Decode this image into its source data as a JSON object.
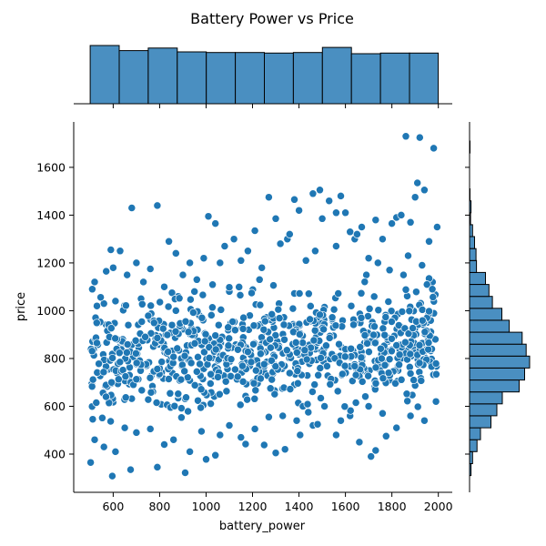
{
  "chart_data": {
    "type": "scatter",
    "title": "Battery Power vs Price",
    "xlabel": "battery_power",
    "ylabel": "price",
    "xlim": [
      430,
      2060
    ],
    "ylim": [
      240,
      1790
    ],
    "x_ticks": [
      "600",
      "800",
      "1000",
      "1200",
      "1400",
      "1600",
      "1800",
      "2000"
    ],
    "y_ticks": [
      "400",
      "600",
      "800",
      "1000",
      "1200",
      "1400",
      "1600"
    ],
    "x_tick_values": [
      600,
      800,
      1000,
      1200,
      1400,
      1600,
      1800,
      2000
    ],
    "y_tick_values": [
      400,
      600,
      800,
      1000,
      1200,
      1400,
      1600
    ],
    "grid": false,
    "point_color": "#1f77b4",
    "hist_color": "#4a8fc1",
    "marginal_x_hist": {
      "bin_edges": [
        501,
        626,
        751,
        876,
        1001,
        1126,
        1251,
        1376,
        1501,
        1626,
        1751,
        1876,
        2000
      ],
      "counts": [
        92,
        84,
        88,
        82,
        81,
        81,
        80,
        81,
        89,
        79,
        80,
        80
      ]
    },
    "marginal_y_hist": {
      "bin_edges": [
        310,
        360,
        410,
        460,
        510,
        560,
        610,
        660,
        710,
        760,
        810,
        860,
        910,
        960,
        1010,
        1060,
        1110,
        1160,
        1210,
        1260,
        1310,
        1360,
        1410,
        1460,
        1510,
        1560,
        1610,
        1660,
        1710,
        1760
      ],
      "counts": [
        3,
        6,
        15,
        22,
        43,
        55,
        66,
        100,
        111,
        121,
        114,
        106,
        80,
        65,
        46,
        39,
        32,
        14,
        13,
        10,
        6,
        2,
        3,
        1,
        0,
        0,
        0,
        1,
        0
      ]
    },
    "points": [
      [
        503,
        365
      ],
      [
        596,
        308
      ],
      [
        675,
        335
      ],
      [
        790,
        345
      ],
      [
        910,
        322
      ],
      [
        1000,
        378
      ],
      [
        1040,
        395
      ],
      [
        1170,
        442
      ],
      [
        1250,
        438
      ],
      [
        1300,
        405
      ],
      [
        1340,
        420
      ],
      [
        1405,
        480
      ],
      [
        1460,
        520
      ],
      [
        1710,
        390
      ],
      [
        1730,
        415
      ],
      [
        1775,
        475
      ],
      [
        1660,
        450
      ],
      [
        1560,
        480
      ],
      [
        1510,
        600
      ],
      [
        1580,
        540
      ],
      [
        520,
        460
      ],
      [
        560,
        430
      ],
      [
        610,
        410
      ],
      [
        650,
        510
      ],
      [
        700,
        490
      ],
      [
        760,
        505
      ],
      [
        820,
        440
      ],
      [
        860,
        460
      ],
      [
        930,
        410
      ],
      [
        980,
        495
      ],
      [
        1060,
        480
      ],
      [
        1100,
        520
      ],
      [
        1150,
        470
      ],
      [
        1210,
        505
      ],
      [
        1270,
        555
      ],
      [
        1330,
        560
      ],
      [
        1390,
        540
      ],
      [
        1440,
        575
      ],
      [
        1480,
        525
      ],
      [
        1620,
        560
      ],
      [
        1700,
        600
      ],
      [
        1760,
        570
      ],
      [
        1820,
        510
      ],
      [
        1880,
        560
      ],
      [
        1940,
        540
      ],
      [
        1990,
        620
      ],
      [
        510,
        1090
      ],
      [
        520,
        1120
      ],
      [
        540,
        950
      ],
      [
        570,
        1165
      ],
      [
        590,
        1255
      ],
      [
        600,
        1180
      ],
      [
        630,
        1250
      ],
      [
        660,
        1150
      ],
      [
        680,
        1430
      ],
      [
        700,
        1200
      ],
      [
        730,
        1120
      ],
      [
        760,
        1175
      ],
      [
        790,
        1440
      ],
      [
        820,
        1100
      ],
      [
        840,
        1290
      ],
      [
        870,
        1240
      ],
      [
        900,
        1150
      ],
      [
        930,
        1200
      ],
      [
        960,
        1130
      ],
      [
        990,
        1220
      ],
      [
        1010,
        1395
      ],
      [
        1040,
        1365
      ],
      [
        1060,
        1200
      ],
      [
        1080,
        1270
      ],
      [
        1120,
        1300
      ],
      [
        1150,
        1210
      ],
      [
        1180,
        1250
      ],
      [
        1210,
        1335
      ],
      [
        1240,
        1180
      ],
      [
        1270,
        1475
      ],
      [
        1300,
        1385
      ],
      [
        1320,
        1280
      ],
      [
        1350,
        1300
      ],
      [
        1380,
        1465
      ],
      [
        1400,
        1420
      ],
      [
        1430,
        1210
      ],
      [
        1460,
        1490
      ],
      [
        1490,
        1505
      ],
      [
        1500,
        1385
      ],
      [
        1530,
        1460
      ],
      [
        1560,
        1410
      ],
      [
        1580,
        1480
      ],
      [
        1600,
        1410
      ],
      [
        1620,
        1330
      ],
      [
        1640,
        1300
      ],
      [
        1670,
        1350
      ],
      [
        1700,
        1220
      ],
      [
        1730,
        1380
      ],
      [
        1760,
        1300
      ],
      [
        1800,
        1365
      ],
      [
        1820,
        1390
      ],
      [
        1840,
        1400
      ],
      [
        1860,
        1730
      ],
      [
        1880,
        1370
      ],
      [
        1900,
        1475
      ],
      [
        1920,
        1725
      ],
      [
        1940,
        1505
      ],
      [
        1960,
        1290
      ],
      [
        1980,
        1680
      ],
      [
        1995,
        1350
      ],
      [
        1910,
        1535
      ],
      [
        1870,
        1230
      ],
      [
        1650,
        1320
      ],
      [
        1560,
        1270
      ],
      [
        1470,
        1250
      ],
      [
        1360,
        1320
      ],
      [
        1230,
        1130
      ],
      [
        1100,
        1080
      ],
      [
        950,
        1080
      ],
      [
        880,
        1060
      ],
      [
        720,
        1050
      ],
      [
        610,
        1040
      ],
      [
        560,
        1030
      ],
      [
        530,
        1020
      ],
      [
        1690,
        1150
      ],
      [
        1740,
        1200
      ],
      [
        1790,
        1170
      ],
      [
        1850,
        1150
      ],
      [
        1930,
        1190
      ],
      [
        1975,
        1120
      ]
    ]
  }
}
